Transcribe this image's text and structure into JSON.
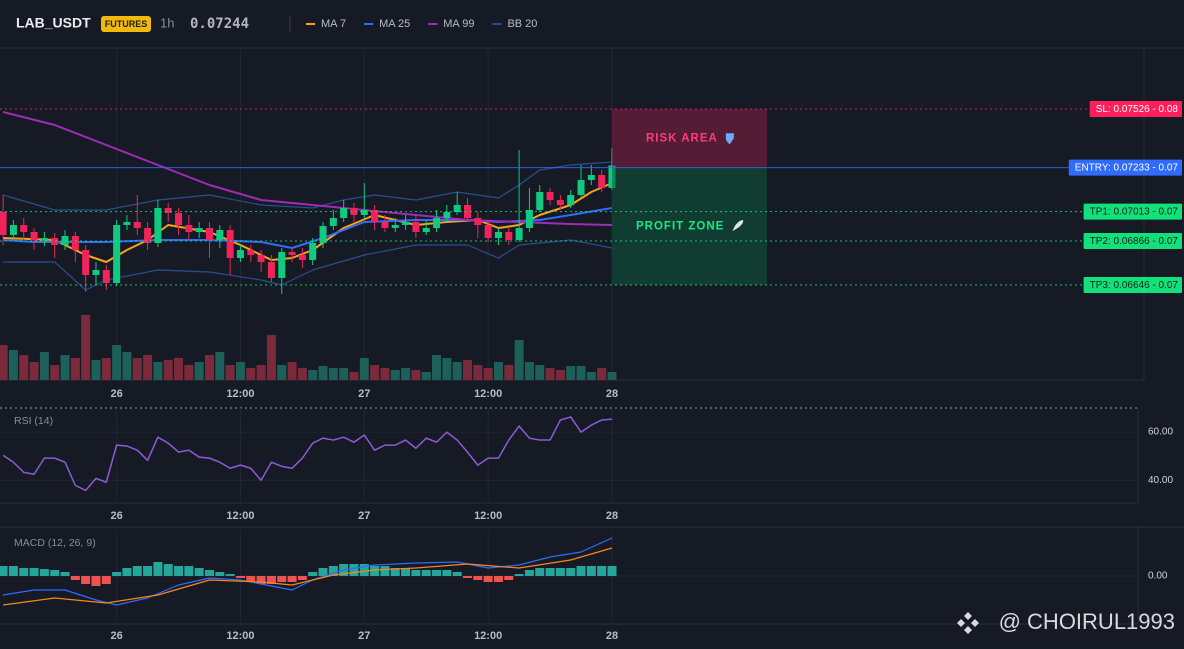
{
  "header": {
    "symbol": "LAB_USDT",
    "badge": "FUTURES",
    "interval": "1h",
    "last_price": 0.07244,
    "last_price_color": "#f0245a"
  },
  "watermark": "@ CHOIRUL1993",
  "chart_data": [
    {
      "type": "candlestick",
      "categories": [
        null,
        null,
        null,
        null,
        null,
        null,
        null,
        null,
        null,
        null,
        null,
        "26",
        null,
        null,
        null,
        null,
        null,
        null,
        null,
        null,
        null,
        null,
        null,
        "12:00",
        null,
        null,
        null,
        null,
        null,
        null,
        null,
        null,
        null,
        null,
        null,
        "27",
        null,
        null,
        null,
        null,
        null,
        null,
        null,
        null,
        null,
        null,
        null,
        "12:00",
        null,
        null,
        null,
        null,
        null,
        null,
        null,
        null,
        null,
        null,
        null,
        "28"
      ],
      "open": [
        0.07011,
        0.06896,
        0.06946,
        0.06911,
        0.06871,
        0.06881,
        0.06846,
        0.06891,
        0.06821,
        0.06696,
        0.06721,
        0.06656,
        0.06946,
        0.06961,
        0.06931,
        0.06856,
        0.07031,
        0.07006,
        0.06946,
        0.06911,
        0.06931,
        0.06871,
        0.06921,
        0.06781,
        0.06821,
        0.06796,
        0.06761,
        0.06681,
        0.06811,
        0.06796,
        0.06771,
        0.06856,
        0.06941,
        0.06981,
        0.07031,
        0.06996,
        0.07021,
        0.06961,
        0.06931,
        0.06946,
        0.06961,
        0.06911,
        0.06931,
        0.06981,
        0.07011,
        0.07046,
        0.06981,
        0.06946,
        0.06881,
        0.06911,
        0.06871,
        0.06931,
        0.07021,
        0.07111,
        0.07071,
        0.07046,
        0.07096,
        0.07171,
        0.07196,
        0.07131
      ],
      "high": [
        0.07096,
        0.06971,
        0.06981,
        0.06931,
        0.06911,
        0.06906,
        0.06921,
        0.06911,
        0.06846,
        0.06761,
        0.06746,
        0.06971,
        0.06996,
        0.07096,
        0.06961,
        0.07071,
        0.07056,
        0.07031,
        0.06996,
        0.06961,
        0.06961,
        0.06946,
        0.06946,
        0.06846,
        0.06846,
        0.06821,
        0.06796,
        0.06831,
        0.06836,
        0.06831,
        0.06881,
        0.06961,
        0.07021,
        0.07071,
        0.07056,
        0.07156,
        0.07046,
        0.06996,
        0.06981,
        0.06996,
        0.06996,
        0.06971,
        0.07021,
        0.07046,
        0.07111,
        0.07081,
        0.07011,
        0.06971,
        0.06931,
        0.06931,
        0.07321,
        0.07131,
        0.07146,
        0.07131,
        0.07096,
        0.07121,
        0.07246,
        0.07246,
        0.07221,
        0.07331
      ],
      "low": [
        0.06846,
        0.06871,
        0.06871,
        0.06821,
        0.06841,
        0.06781,
        0.06821,
        0.06761,
        0.06611,
        0.06646,
        0.06621,
        0.06641,
        0.06921,
        0.06896,
        0.06821,
        0.06836,
        0.06961,
        0.06896,
        0.06871,
        0.06881,
        0.06781,
        0.06831,
        0.06696,
        0.06761,
        0.06761,
        0.06711,
        0.06661,
        0.06601,
        0.06761,
        0.06731,
        0.06746,
        0.06831,
        0.06921,
        0.06961,
        0.06961,
        0.06981,
        0.06921,
        0.06911,
        0.06911,
        0.06921,
        0.06881,
        0.06896,
        0.06911,
        0.06961,
        0.06996,
        0.06961,
        0.06881,
        0.06861,
        0.06846,
        0.06846,
        0.06861,
        0.06911,
        0.07011,
        0.07046,
        0.07021,
        0.07031,
        0.07081,
        0.07146,
        0.07111,
        0.07121
      ],
      "close": [
        0.06896,
        0.06946,
        0.06911,
        0.06871,
        0.06881,
        0.06846,
        0.06891,
        0.06821,
        0.06696,
        0.06721,
        0.06656,
        0.06946,
        0.06961,
        0.06931,
        0.06856,
        0.07031,
        0.07006,
        0.06946,
        0.06911,
        0.06931,
        0.06871,
        0.06921,
        0.06781,
        0.06821,
        0.06796,
        0.06761,
        0.06681,
        0.06811,
        0.06796,
        0.06771,
        0.06856,
        0.06941,
        0.06981,
        0.07031,
        0.06996,
        0.07021,
        0.06961,
        0.06931,
        0.06946,
        0.06961,
        0.06911,
        0.06931,
        0.06981,
        0.07011,
        0.07046,
        0.06981,
        0.06946,
        0.06881,
        0.06911,
        0.06871,
        0.06931,
        0.07021,
        0.07111,
        0.07071,
        0.07046,
        0.07096,
        0.07171,
        0.07196,
        0.07131,
        0.07244
      ],
      "volume": [
        35,
        30,
        25,
        18,
        28,
        15,
        25,
        22,
        65,
        20,
        22,
        35,
        28,
        22,
        25,
        18,
        20,
        22,
        15,
        18,
        25,
        28,
        15,
        18,
        12,
        15,
        45,
        15,
        18,
        12,
        10,
        14,
        12,
        12,
        8,
        22,
        15,
        12,
        10,
        12,
        10,
        8,
        25,
        22,
        18,
        20,
        15,
        12,
        18,
        15,
        40,
        18,
        15,
        12,
        10,
        14,
        14,
        8,
        12,
        8
      ],
      "ylim": [
        0.06171,
        0.07831
      ],
      "volume_ylim": [
        0,
        100
      ],
      "up_color": "#0ecb81",
      "down_color": "#f0245a",
      "volume_up_color": "#1d5f59",
      "volume_down_color": "#7a2a3a",
      "indicators": [
        {
          "name": "MA 7",
          "color": "#f7a21b",
          "x": [
            0,
            5,
            8,
            10,
            12,
            14,
            16,
            20,
            23,
            26,
            28,
            30,
            33,
            36,
            40,
            43,
            46,
            48,
            50,
            52,
            55,
            57,
            59
          ],
          "values": [
            0.06881,
            0.06871,
            0.06796,
            0.06761,
            0.06821,
            0.06871,
            0.06946,
            0.06911,
            0.06846,
            0.06771,
            0.06781,
            0.06821,
            0.06931,
            0.06996,
            0.06946,
            0.06961,
            0.06971,
            0.06931,
            0.06946,
            0.06996,
            0.07046,
            0.07111,
            0.07156
          ]
        },
        {
          "name": "MA 25",
          "color": "#2f6bff",
          "x": [
            0,
            3,
            10,
            15,
            20,
            25,
            28,
            31,
            35,
            40,
            45,
            48,
            52,
            55,
            59
          ],
          "values": [
            0.06871,
            0.06861,
            0.06861,
            0.06871,
            0.06871,
            0.06861,
            0.06831,
            0.06881,
            0.06961,
            0.06971,
            0.06971,
            0.06961,
            0.06971,
            0.06996,
            0.07031
          ]
        },
        {
          "name": "MA 99",
          "color": "#a02bb5",
          "x": [
            0,
            5,
            10,
            15,
            20,
            25,
            30,
            35,
            40,
            45,
            50,
            55,
            59
          ],
          "values": [
            0.07511,
            0.07446,
            0.07346,
            0.07246,
            0.07146,
            0.07071,
            0.07046,
            0.07021,
            0.06996,
            0.06971,
            0.06961,
            0.06951,
            0.06946
          ]
        }
      ],
      "bands": {
        "name": "BB 20",
        "color": "#2a4d8f",
        "upper_x": [
          0,
          5,
          10,
          15,
          20,
          25,
          30,
          33,
          36,
          40,
          44,
          48,
          50,
          52,
          55,
          59
        ],
        "upper": [
          0.07096,
          0.07021,
          0.07021,
          0.07071,
          0.07096,
          0.07046,
          0.07031,
          0.07071,
          0.07096,
          0.07071,
          0.07111,
          0.07081,
          0.07146,
          0.07221,
          0.07246,
          0.07261
        ],
        "lower_x": [
          0,
          5,
          8,
          10,
          15,
          20,
          25,
          27,
          30,
          35,
          40,
          45,
          48,
          50,
          55,
          59
        ],
        "lower": [
          0.06761,
          0.06761,
          0.06621,
          0.06671,
          0.06721,
          0.06711,
          0.06671,
          0.06646,
          0.06721,
          0.06796,
          0.06846,
          0.06846,
          0.06781,
          0.06846,
          0.06871,
          0.06831
        ]
      },
      "levels": [
        {
          "label": "SL: 0.07526 - 0.08",
          "value": 0.07526,
          "color": "#ff1f5a",
          "text_color": "#ffffff",
          "dashed": true
        },
        {
          "label": "ENTRY: 0.07233 - 0.07",
          "value": 0.07233,
          "color": "#2f6bff",
          "text_color": "#ffffff",
          "dashed": false
        },
        {
          "label": "TP1: 0.07013 - 0.07",
          "value": 0.07013,
          "color": "#12e07a",
          "text_color": "#10241a",
          "dashed": true
        },
        {
          "label": "TP2: 0.06866 - 0.07",
          "value": 0.06866,
          "color": "#12e07a",
          "text_color": "#10241a",
          "dashed": true
        },
        {
          "label": "TP3: 0.06646 - 0.07",
          "value": 0.06646,
          "color": "#12e07a",
          "text_color": "#10241a",
          "dashed": true
        }
      ],
      "zones": [
        {
          "label": "RISK AREA",
          "color": "#8a1f45",
          "text_color": "#ff3d73"
        },
        {
          "label": "PROFIT ZONE",
          "color": "#0d5a3d",
          "text_color": "#1ee886"
        }
      ]
    },
    {
      "type": "line",
      "title": "RSI (14)",
      "categories": [
        null,
        null,
        null,
        null,
        null,
        null,
        null,
        null,
        null,
        null,
        null,
        "26",
        null,
        null,
        null,
        null,
        null,
        null,
        null,
        null,
        null,
        null,
        null,
        "12:00",
        null,
        null,
        null,
        null,
        null,
        null,
        null,
        null,
        null,
        null,
        null,
        "27",
        null,
        null,
        null,
        null,
        null,
        null,
        null,
        null,
        null,
        null,
        null,
        "12:00",
        null,
        null,
        null,
        null,
        null,
        null,
        null,
        null,
        null,
        null,
        null,
        "28"
      ],
      "series": [
        {
          "color": "#8e5bd8",
          "values": [
            50.4,
            47.5,
            43.3,
            42.5,
            49.2,
            49.2,
            47.5,
            37.9,
            35.8,
            40.8,
            39.2,
            54.6,
            54.2,
            52.5,
            48.3,
            57.9,
            55.4,
            51.7,
            52.5,
            49.6,
            49.2,
            47.5,
            45,
            46.3,
            45,
            40,
            47.5,
            45.8,
            45,
            49.2,
            55.4,
            57.5,
            56.7,
            57.9,
            55.8,
            58.8,
            52.5,
            54.6,
            54.6,
            56.7,
            53.3,
            57.5,
            55.8,
            60,
            56.7,
            51.7,
            46.3,
            49.2,
            49.2,
            56.7,
            62.5,
            57.5,
            56.7,
            56.7,
            65,
            66.3,
            60,
            62.9,
            65,
            65.4
          ]
        }
      ],
      "ylim": [
        31,
        70
      ],
      "yticks": [
        {
          "value": 60,
          "label": "60.00"
        },
        {
          "value": 40,
          "label": "40.00"
        }
      ],
      "grid": true
    },
    {
      "type": "combo",
      "title": "MACD (12, 26, 9)",
      "categories": [
        null,
        null,
        null,
        null,
        null,
        null,
        null,
        null,
        null,
        null,
        null,
        "26",
        null,
        null,
        null,
        null,
        null,
        null,
        null,
        null,
        null,
        null,
        null,
        "12:00",
        null,
        null,
        null,
        null,
        null,
        null,
        null,
        null,
        null,
        null,
        null,
        "27",
        null,
        null,
        null,
        null,
        null,
        null,
        null,
        null,
        null,
        null,
        null,
        "12:00",
        null,
        null,
        null,
        null,
        null,
        null,
        null,
        null,
        null,
        null,
        null,
        "28"
      ],
      "bars": {
        "up_color": "#26a69a",
        "down_color": "#ef5350",
        "values": [
          0.0001,
          0.0001,
          8e-05,
          8e-05,
          7e-05,
          6e-05,
          4e-05,
          -4e-05,
          -8e-05,
          -0.0001,
          -8e-05,
          4e-05,
          8e-05,
          0.0001,
          0.0001,
          0.00014,
          0.00012,
          0.0001,
          0.0001,
          8e-05,
          6e-05,
          4e-05,
          2e-05,
          -2e-05,
          -5e-05,
          -8e-05,
          -8e-05,
          -6e-05,
          -6e-05,
          -4e-05,
          4e-05,
          8e-05,
          0.0001,
          0.00012,
          0.00012,
          0.00012,
          0.0001,
          0.0001,
          8e-05,
          8e-05,
          6e-05,
          6e-05,
          6e-05,
          6e-05,
          4e-05,
          -2e-05,
          -4e-05,
          -6e-05,
          -6e-05,
          -4e-05,
          2e-05,
          6e-05,
          8e-05,
          8e-05,
          8e-05,
          8e-05,
          0.0001,
          0.0001,
          0.0001,
          0.0001
        ]
      },
      "series": [
        {
          "color": "#2f6bff",
          "x": [
            0,
            3,
            6,
            9,
            11,
            14,
            17,
            20,
            23,
            26,
            28,
            30,
            33,
            36,
            40,
            44,
            47,
            50,
            53,
            56,
            59
          ],
          "values": [
            -0.00019,
            -0.00014,
            -0.00014,
            -0.00024,
            -0.00029,
            -0.00022,
            -9e-05,
            -2e-05,
            -4e-05,
            -0.0001,
            -0.00014,
            -4e-05,
            6e-05,
            0.00011,
            0.00013,
            0.00014,
            8e-05,
            0.00011,
            0.00019,
            0.00024,
            0.00038
          ]
        },
        {
          "color": "#f7861b",
          "x": [
            0,
            5,
            10,
            15,
            20,
            25,
            28,
            32,
            36,
            40,
            45,
            50,
            55,
            59
          ],
          "values": [
            -0.00029,
            -0.00022,
            -0.00027,
            -0.00019,
            -4e-05,
            -6e-05,
            -9e-05,
            1e-05,
            6e-05,
            8e-05,
            0.00012,
            8e-05,
            0.00016,
            0.00028
          ]
        }
      ],
      "ylim": [
        -0.00046,
        0.00046
      ],
      "yticks": [
        {
          "value": 0,
          "label": "0.00"
        }
      ]
    }
  ]
}
